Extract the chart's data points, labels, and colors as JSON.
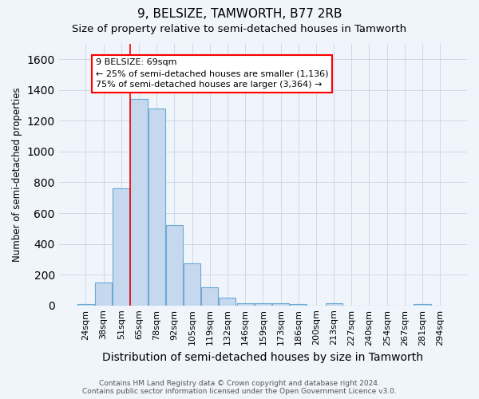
{
  "title": "9, BELSIZE, TAMWORTH, B77 2RB",
  "subtitle": "Size of property relative to semi-detached houses in Tamworth",
  "xlabel": "Distribution of semi-detached houses by size in Tamworth",
  "ylabel": "Number of semi-detached properties",
  "categories": [
    "24sqm",
    "38sqm",
    "51sqm",
    "65sqm",
    "78sqm",
    "92sqm",
    "105sqm",
    "119sqm",
    "132sqm",
    "146sqm",
    "159sqm",
    "173sqm",
    "186sqm",
    "200sqm",
    "213sqm",
    "227sqm",
    "240sqm",
    "254sqm",
    "267sqm",
    "281sqm",
    "294sqm"
  ],
  "values": [
    10,
    150,
    760,
    1340,
    1280,
    520,
    275,
    120,
    50,
    15,
    15,
    15,
    10,
    0,
    15,
    0,
    0,
    0,
    0,
    10,
    0
  ],
  "bar_color": "#c5d8ee",
  "bar_edge_color": "#6aaad4",
  "grid_color": "#d0d8e8",
  "background_color": "#f0f4fb",
  "red_line_x": 2.5,
  "annotation_line1": "9 BELSIZE: 69sqm",
  "annotation_line2": "← 25% of semi-detached houses are smaller (1,136)",
  "annotation_line3": "75% of semi-detached houses are larger (3,364) →",
  "ylim": [
    0,
    1700
  ],
  "yticks": [
    0,
    200,
    400,
    600,
    800,
    1000,
    1200,
    1400,
    1600
  ],
  "footer1": "Contains HM Land Registry data © Crown copyright and database right 2024.",
  "footer2": "Contains public sector information licensed under the Open Government Licence v3.0.",
  "title_fontsize": 11,
  "subtitle_fontsize": 9.5,
  "xlabel_fontsize": 10,
  "ylabel_fontsize": 8.5,
  "tick_fontsize": 8,
  "annot_fontsize": 8
}
